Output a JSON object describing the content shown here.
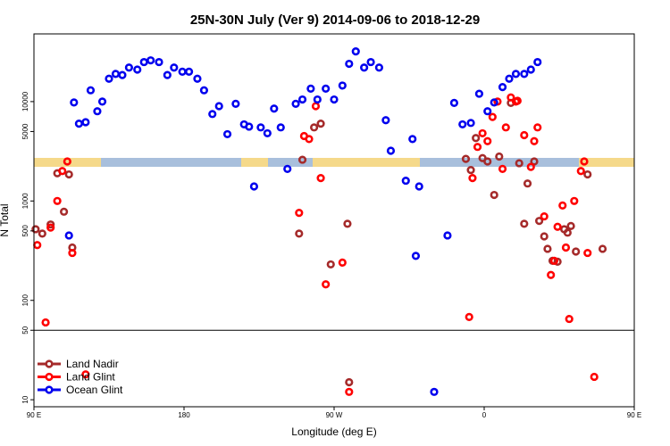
{
  "chart_data": {
    "type": "scatter",
    "title": "25N-30N July (Ver 9)   2014-09-06 to 2018-12-29",
    "xlabel": "Longitude (deg E)",
    "ylabel": "N Total",
    "xlim": [
      90,
      450
    ],
    "xticks": [
      {
        "value": 90,
        "label": "90 E"
      },
      {
        "value": 180,
        "label": "180"
      },
      {
        "value": 270,
        "label": "90 W"
      },
      {
        "value": 360,
        "label": "0"
      },
      {
        "value": 450,
        "label": "90 E"
      },
      {
        "value": 540,
        "label": "180"
      }
    ],
    "y_scale": "log",
    "ylim": [
      8.5,
      48000
    ],
    "yticks": [
      10,
      50,
      100,
      500,
      1000,
      5000,
      10000
    ],
    "ref_line_y": 50,
    "legend_position": "bottom-left",
    "series": [
      {
        "name": "Land Nadir",
        "color": "#a52a2a",
        "points": [
          [
            91,
            520
          ],
          [
            95,
            470
          ],
          [
            100,
            580
          ],
          [
            104,
            1900
          ],
          [
            108,
            780
          ],
          [
            111,
            1850
          ],
          [
            113,
            340
          ],
          [
            249,
            470
          ],
          [
            251,
            2600
          ],
          [
            258,
            5500
          ],
          [
            262,
            6000
          ],
          [
            268,
            230
          ],
          [
            278,
            590
          ],
          [
            279,
            15
          ],
          [
            349,
            2650
          ],
          [
            352,
            2050
          ],
          [
            355,
            4300
          ],
          [
            359,
            2700
          ],
          [
            362,
            2500
          ],
          [
            366,
            1150
          ],
          [
            369,
            2800
          ],
          [
            376,
            9700
          ],
          [
            381,
            2400
          ],
          [
            384,
            590
          ],
          [
            386,
            1500
          ],
          [
            390,
            2500
          ],
          [
            393,
            630
          ],
          [
            396,
            440
          ],
          [
            398,
            330
          ],
          [
            401,
            250
          ],
          [
            404,
            245
          ],
          [
            408,
            520
          ],
          [
            410,
            480
          ],
          [
            412,
            560
          ],
          [
            415,
            310
          ],
          [
            422,
            1850
          ],
          [
            431,
            330
          ]
        ]
      },
      {
        "name": "Land Glint",
        "color": "#ff0000",
        "points": [
          [
            92,
            360
          ],
          [
            97,
            60
          ],
          [
            100,
            540
          ],
          [
            104,
            1000
          ],
          [
            107,
            2000
          ],
          [
            110,
            2500
          ],
          [
            113,
            300
          ],
          [
            121,
            18
          ],
          [
            249,
            760
          ],
          [
            252,
            4500
          ],
          [
            255,
            4200
          ],
          [
            259,
            9000
          ],
          [
            262,
            1700
          ],
          [
            265,
            145
          ],
          [
            275,
            240
          ],
          [
            279,
            12
          ],
          [
            351,
            68
          ],
          [
            353,
            1700
          ],
          [
            356,
            3500
          ],
          [
            359,
            4800
          ],
          [
            362,
            4000
          ],
          [
            365,
            7000
          ],
          [
            368,
            10000
          ],
          [
            371,
            2100
          ],
          [
            373,
            5500
          ],
          [
            376,
            11000
          ],
          [
            379,
            10000
          ],
          [
            380,
            10200
          ],
          [
            384,
            4600
          ],
          [
            388,
            2200
          ],
          [
            390,
            4000
          ],
          [
            392,
            5500
          ],
          [
            396,
            700
          ],
          [
            400,
            180
          ],
          [
            402,
            250
          ],
          [
            404,
            550
          ],
          [
            407,
            900
          ],
          [
            409,
            340
          ],
          [
            411,
            65
          ],
          [
            414,
            1000
          ],
          [
            418,
            2000
          ],
          [
            420,
            2500
          ],
          [
            422,
            300
          ],
          [
            426,
            17
          ]
        ]
      },
      {
        "name": "Ocean Glint",
        "color": "#0000ee",
        "points": [
          [
            111,
            450
          ],
          [
            114,
            9800
          ],
          [
            117,
            6000
          ],
          [
            121,
            6200
          ],
          [
            124,
            13000
          ],
          [
            128,
            8000
          ],
          [
            131,
            10000
          ],
          [
            135,
            17000
          ],
          [
            139,
            19000
          ],
          [
            143,
            18500
          ],
          [
            147,
            22000
          ],
          [
            152,
            21000
          ],
          [
            156,
            25000
          ],
          [
            160,
            26000
          ],
          [
            165,
            25000
          ],
          [
            170,
            18500
          ],
          [
            174,
            22000
          ],
          [
            179,
            20000
          ],
          [
            183,
            20000
          ],
          [
            188,
            17000
          ],
          [
            192,
            13000
          ],
          [
            197,
            7500
          ],
          [
            201,
            9000
          ],
          [
            206,
            4700
          ],
          [
            211,
            9500
          ],
          [
            216,
            5900
          ],
          [
            219,
            5600
          ],
          [
            222,
            1400
          ],
          [
            226,
            5500
          ],
          [
            230,
            4800
          ],
          [
            234,
            8500
          ],
          [
            238,
            5500
          ],
          [
            242,
            2100
          ],
          [
            247,
            9500
          ],
          [
            251,
            10500
          ],
          [
            256,
            13500
          ],
          [
            260,
            10500
          ],
          [
            265,
            13500
          ],
          [
            270,
            10500
          ],
          [
            275,
            14500
          ],
          [
            279,
            24000
          ],
          [
            283,
            32000
          ],
          [
            288,
            22000
          ],
          [
            292,
            25000
          ],
          [
            297,
            22000
          ],
          [
            301,
            6500
          ],
          [
            304,
            3200
          ],
          [
            313,
            1600
          ],
          [
            317,
            4200
          ],
          [
            321,
            1400
          ],
          [
            319,
            280
          ],
          [
            330,
            12
          ],
          [
            338,
            450
          ],
          [
            342,
            9700
          ],
          [
            347,
            5900
          ],
          [
            352,
            6100
          ],
          [
            357,
            12000
          ],
          [
            362,
            8000
          ],
          [
            366,
            9800
          ],
          [
            371,
            14000
          ],
          [
            375,
            17000
          ],
          [
            379,
            19000
          ],
          [
            384,
            19000
          ],
          [
            388,
            21000
          ],
          [
            392,
            25000
          ]
        ]
      }
    ]
  }
}
